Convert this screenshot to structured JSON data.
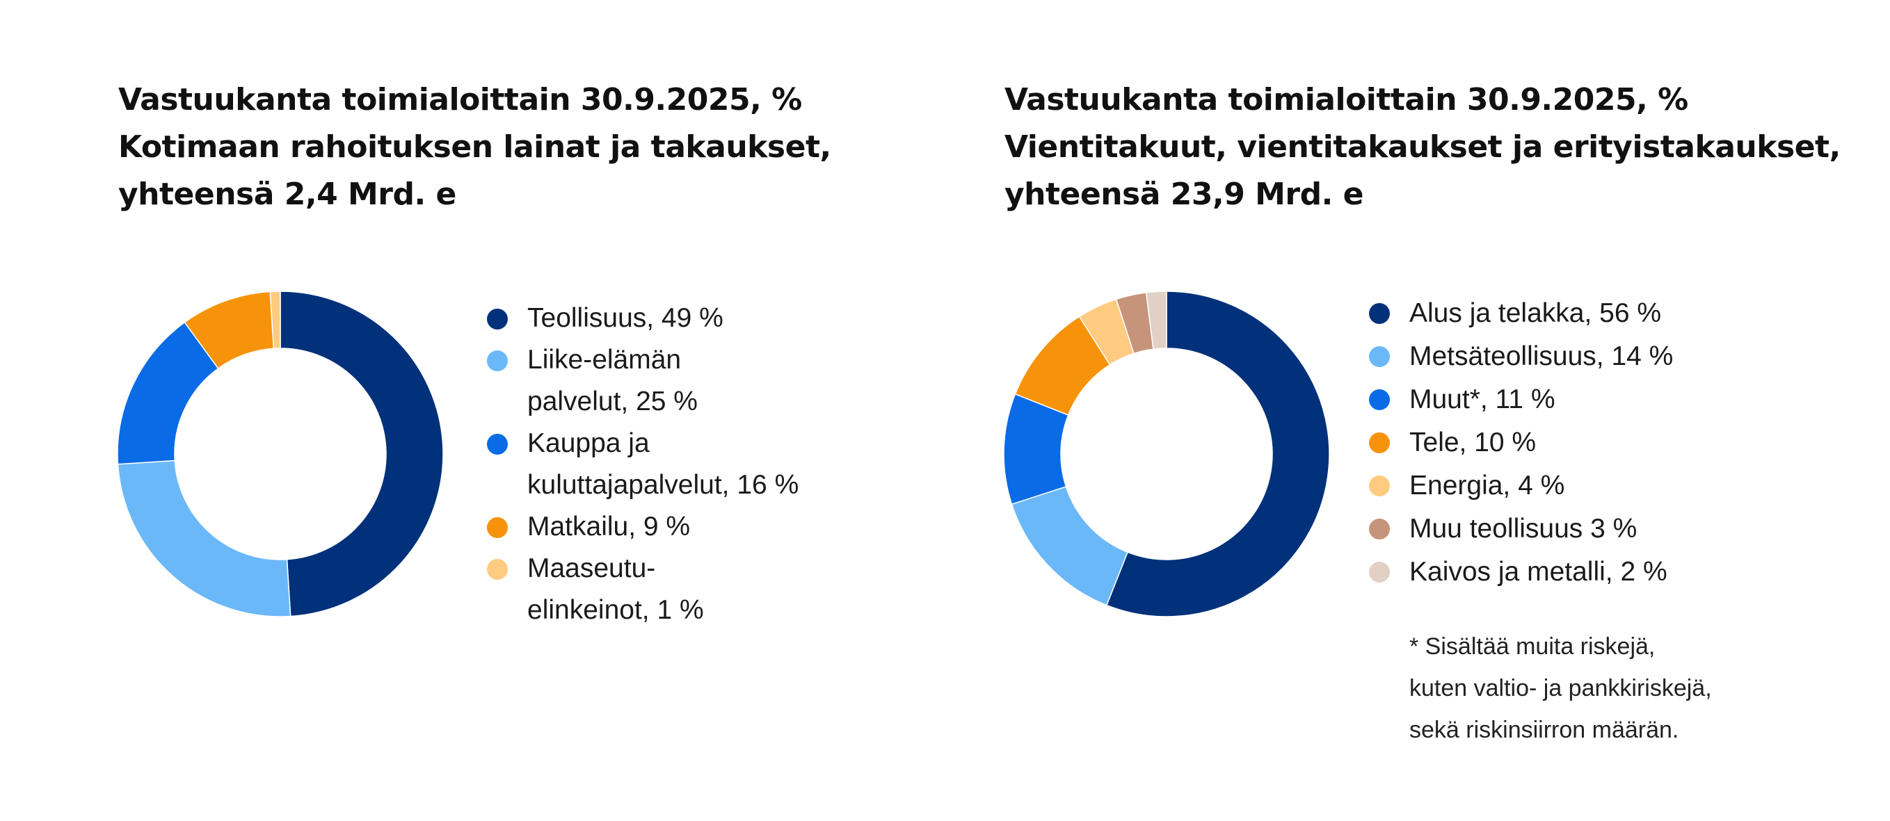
{
  "colors": {
    "navy": "#00317A",
    "light_blue": "#6BB8F9",
    "blue": "#0A6BE6",
    "orange": "#F7930A",
    "light_orange": "#FFCB80",
    "tan": "#C6947A",
    "beige": "#E3D0C5"
  },
  "chart_data": [
    {
      "type": "pie",
      "donut": true,
      "title_lines": [
        "Vastuukanta toimialoittain 30.9.2025, %",
        "Kotimaan rahoituksen lainat ja takaukset,",
        "yhteensä 2,4 Mrd. e"
      ],
      "legend_position": "right",
      "categories": [
        "Teollisuus",
        "Liike-elämän palvelut",
        "Kauppa ja kuluttajapalvelut",
        "Matkailu",
        "Maaseutu-elinkeinot"
      ],
      "values": [
        49,
        25,
        16,
        9,
        1
      ],
      "colors": [
        "#00317A",
        "#6BB8F9",
        "#0A6BE6",
        "#F7930A",
        "#FFCB80"
      ],
      "legend": [
        {
          "lines": [
            "Teollisuus, 49 %"
          ]
        },
        {
          "lines": [
            "Liike-elämän",
            "palvelut, 25 %"
          ]
        },
        {
          "lines": [
            "Kauppa ja",
            "kuluttajapalvelut, 16 %"
          ]
        },
        {
          "lines": [
            "Matkailu, 9 %"
          ]
        },
        {
          "lines": [
            "Maaseutu-",
            "elinkeinot, 1 %"
          ]
        }
      ]
    },
    {
      "type": "pie",
      "donut": true,
      "title_lines": [
        "Vastuukanta toimialoittain 30.9.2025, %",
        "Vientitakuut, vientitakaukset ja erityistakaukset,",
        "yhteensä 23,9 Mrd. e"
      ],
      "legend_position": "right",
      "categories": [
        "Alus ja telakka",
        "Metsäteollisuus",
        "Muut*",
        "Tele",
        "Energia",
        "Muu teollisuus",
        "Kaivos ja metalli"
      ],
      "values": [
        56,
        14,
        11,
        10,
        4,
        3,
        2
      ],
      "colors": [
        "#00317A",
        "#6BB8F9",
        "#0A6BE6",
        "#F7930A",
        "#FFCB80",
        "#C6947A",
        "#E3D0C5"
      ],
      "legend": [
        {
          "lines": [
            "Alus ja telakka, 56 %"
          ]
        },
        {
          "lines": [
            "Metsäteollisuus, 14 %"
          ]
        },
        {
          "lines": [
            "Muut*, 11 %"
          ]
        },
        {
          "lines": [
            "Tele, 10 %"
          ]
        },
        {
          "lines": [
            "Energia, 4 %"
          ]
        },
        {
          "lines": [
            "Muu teollisuus 3 %"
          ]
        },
        {
          "lines": [
            "Kaivos ja metalli, 2 %"
          ]
        }
      ],
      "footnote_lines": [
        "* Sisältää muita riskejä,",
        "kuten valtio- ja pankkiriskejä,",
        "sekä riskinsiirron määrän."
      ]
    }
  ]
}
